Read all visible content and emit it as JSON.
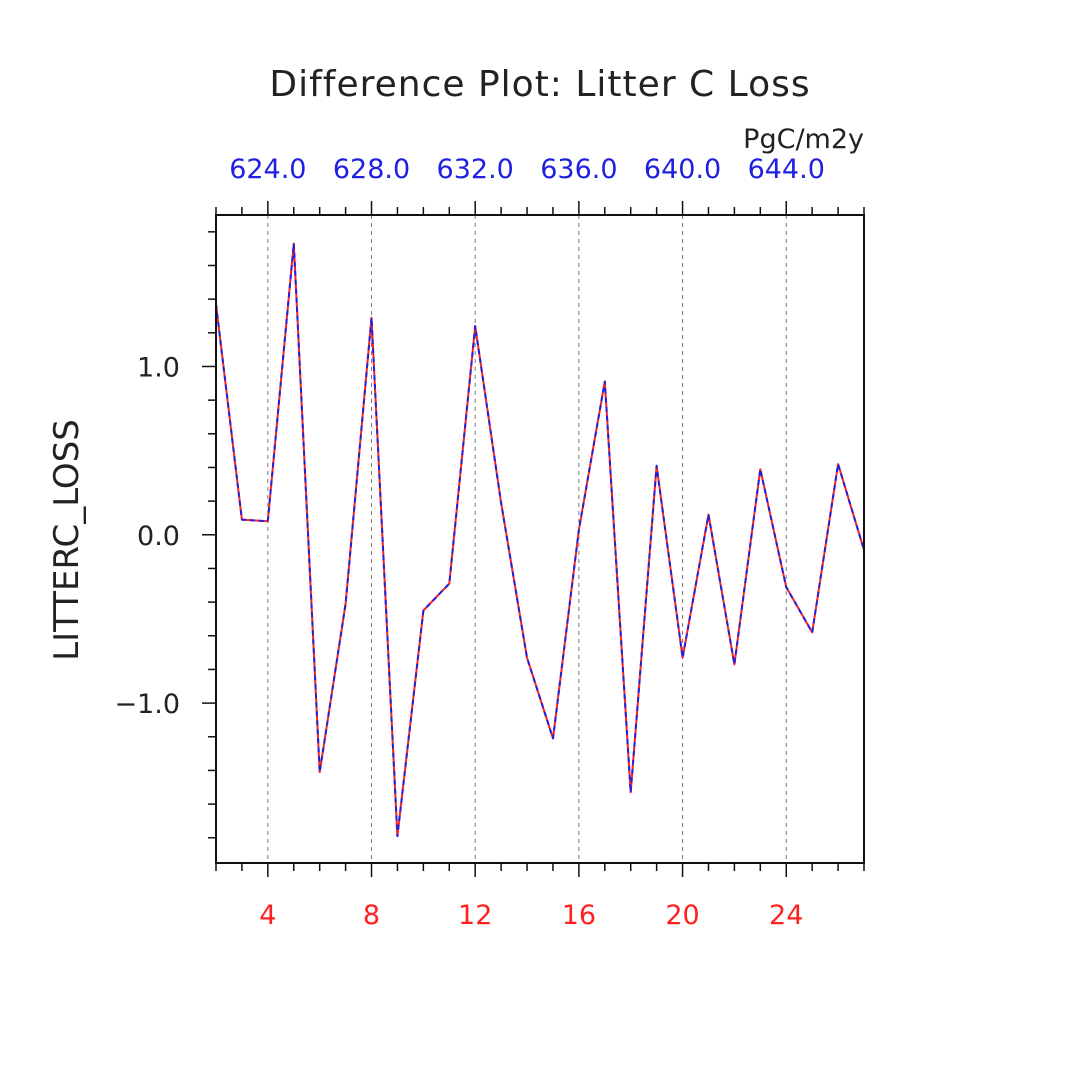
{
  "chart_data": {
    "type": "line",
    "title": "Difference Plot: Litter C Loss",
    "units": "PgC/m2y",
    "ylabel": "LITTERC_LOSS",
    "xlim": [
      2,
      27
    ],
    "ylim": [
      -1.95,
      1.9
    ],
    "x_ticks": [
      4,
      8,
      12,
      16,
      20,
      24
    ],
    "x_tick_labels": [
      "4",
      "8",
      "12",
      "16",
      "20",
      "24"
    ],
    "x_top_tick_labels": [
      "624.0",
      "628.0",
      "632.0",
      "636.0",
      "640.0",
      "644.0"
    ],
    "y_ticks": [
      1.0,
      0.0,
      -1.0
    ],
    "y_tick_labels": [
      "1.0",
      "0.0",
      "−1.0"
    ],
    "grid": "vertical dashed",
    "colors": {
      "bottom_axis": "#ff2020",
      "top_axis": "#2020e0",
      "series_a": "#ff2020",
      "series_b": "#2020e0"
    },
    "x": [
      2,
      3,
      4,
      5,
      6,
      7,
      8,
      9,
      10,
      11,
      12,
      13,
      14,
      15,
      16,
      17,
      18,
      19,
      20,
      21,
      22,
      23,
      24,
      25,
      26,
      27
    ],
    "series": [
      {
        "values": [
          1.37,
          0.09,
          0.08,
          1.73,
          -1.41,
          -0.41,
          1.29,
          -1.79,
          -0.45,
          -0.29,
          1.24,
          0.19,
          -0.73,
          -1.21,
          0.03,
          0.91,
          -1.53,
          0.41,
          -0.73,
          0.12,
          -0.77,
          0.39,
          -0.31,
          -0.58,
          0.42,
          -0.09
        ]
      },
      {
        "values": [
          1.37,
          0.09,
          0.08,
          1.73,
          -1.41,
          -0.41,
          1.29,
          -1.79,
          -0.45,
          -0.29,
          1.24,
          0.19,
          -0.73,
          -1.21,
          0.03,
          0.91,
          -1.53,
          0.41,
          -0.73,
          0.12,
          -0.77,
          0.39,
          -0.31,
          -0.58,
          0.42,
          -0.09
        ]
      }
    ]
  }
}
